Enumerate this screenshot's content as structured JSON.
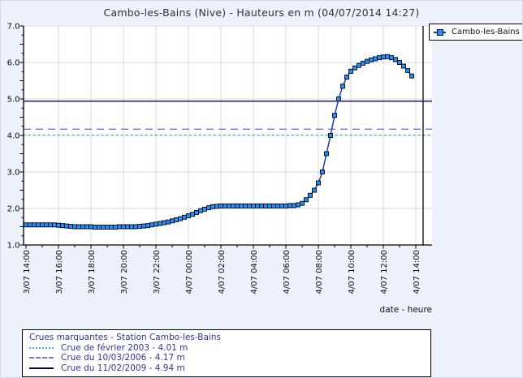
{
  "title": "Cambo-les-Bains (Nive) - Hauteurs en m (04/07/2014 14:27)",
  "info_box": {
    "title": "Crues marquantes - Station Cambo-les-Bains"
  },
  "chart_data": {
    "type": "line",
    "title": "Cambo-les-Bains (Nive) - Hauteurs en m (04/07/2014 14:27)",
    "xlabel": "date - heure",
    "ylabel": "",
    "ylim": [
      1.0,
      7.0
    ],
    "grid": true,
    "legend_position": "top-right",
    "y_tick_labels": [
      "1.0",
      "2.0",
      "3.0",
      "4.0",
      "5.0",
      "6.0",
      "7.0"
    ],
    "x_tick_labels": [
      "3/07 14:00",
      "3/07 16:00",
      "3/07 18:00",
      "3/07 20:00",
      "3/07 22:00",
      "4/07 00:00",
      "4/07 02:00",
      "4/07 04:00",
      "4/07 06:00",
      "4/07 08:00",
      "4/07 10:00",
      "4/07 12:00",
      "4/07 14:00"
    ],
    "x_major_tick_hours": 2,
    "x_minor_tick_hours": 1,
    "series": [
      {
        "name": "Cambo-les-Bains",
        "start": "3/07 14:00",
        "interval_minutes": 15,
        "values": [
          1.55,
          1.55,
          1.55,
          1.55,
          1.55,
          1.55,
          1.55,
          1.55,
          1.54,
          1.53,
          1.52,
          1.51,
          1.5,
          1.5,
          1.5,
          1.5,
          1.5,
          1.49,
          1.49,
          1.49,
          1.49,
          1.49,
          1.49,
          1.5,
          1.5,
          1.5,
          1.5,
          1.5,
          1.51,
          1.52,
          1.53,
          1.55,
          1.57,
          1.59,
          1.61,
          1.63,
          1.66,
          1.69,
          1.72,
          1.76,
          1.8,
          1.84,
          1.89,
          1.94,
          1.98,
          2.02,
          2.05,
          2.06,
          2.07,
          2.07,
          2.07,
          2.07,
          2.07,
          2.07,
          2.07,
          2.07,
          2.07,
          2.07,
          2.07,
          2.07,
          2.07,
          2.07,
          2.07,
          2.07,
          2.07,
          2.08,
          2.08,
          2.1,
          2.14,
          2.24,
          2.36,
          2.5,
          2.7,
          3.0,
          3.5,
          4.0,
          4.55,
          5.0,
          5.35,
          5.6,
          5.76,
          5.85,
          5.92,
          5.98,
          6.03,
          6.07,
          6.1,
          6.13,
          6.15,
          6.16,
          6.13,
          6.08,
          6.0,
          5.9,
          5.78,
          5.63
        ]
      }
    ],
    "reference_lines": [
      {
        "label": "Crue de février 2003 - 4.01 m",
        "value": 4.01,
        "style": "dotted",
        "color": "#3FA8DC"
      },
      {
        "label": "Crue du 10/03/2006 - 4.17 m",
        "value": 4.17,
        "style": "dashed",
        "color": "#7878D8"
      },
      {
        "label": "Crue du 11/02/2009 - 4.94 m",
        "value": 4.94,
        "style": "solid",
        "color": "#000066"
      }
    ],
    "current_time_line": {
      "label": "04/07/2014 14:27",
      "hours_from_start": 24.45,
      "color": "#000000"
    },
    "colors": {
      "line": "#1133AA",
      "marker": "#1E90FF",
      "marker_border": "#000000",
      "grid": "#D9D9D9",
      "axis": "#000000",
      "plot_bg": "#FFFFFF",
      "page_bg": "#EDF2FA",
      "info_text": "#333399"
    }
  }
}
